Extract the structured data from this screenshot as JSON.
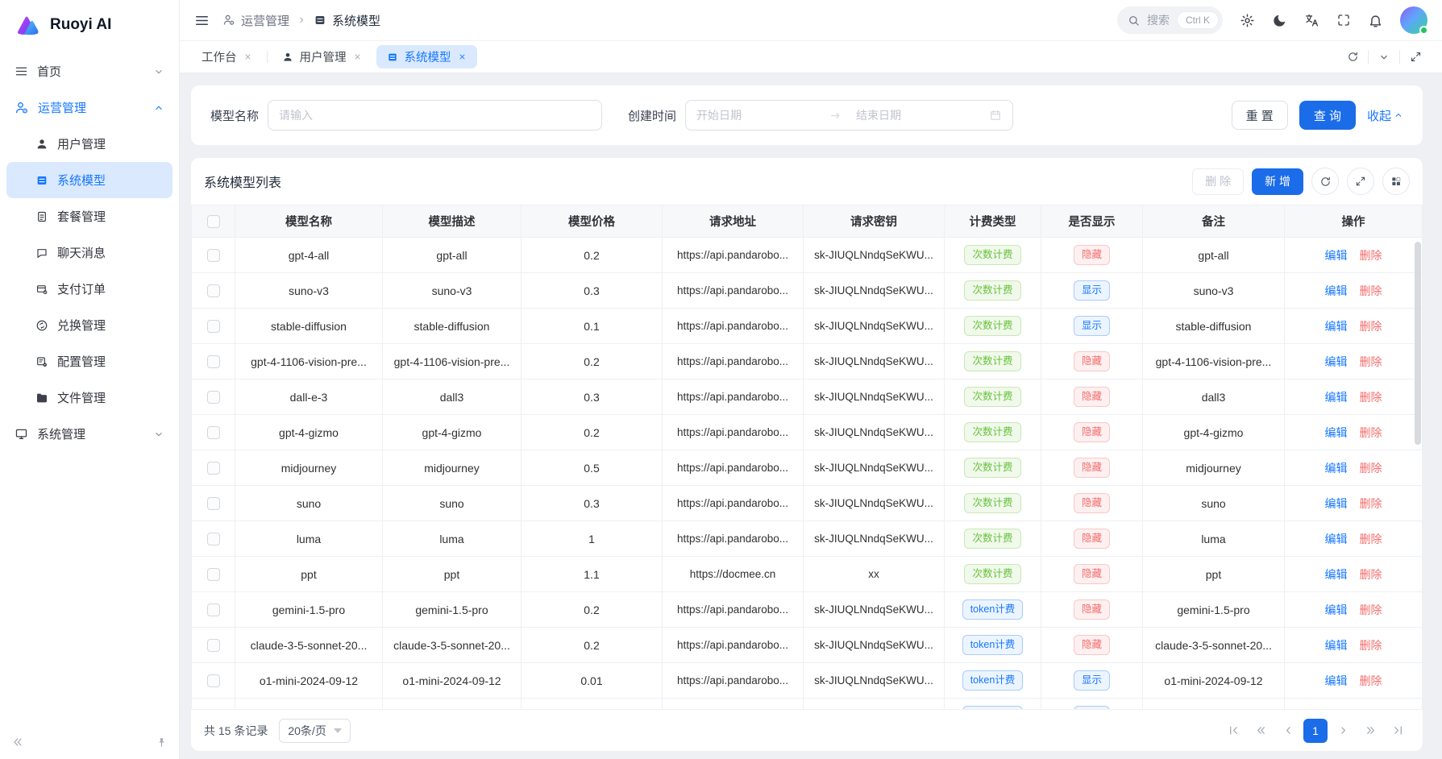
{
  "app": {
    "logo_text": "Ruoyi AI"
  },
  "sidebar": {
    "items": [
      {
        "label": "首页"
      },
      {
        "label": "运营管理",
        "children": [
          {
            "label": "用户管理"
          },
          {
            "label": "系统模型",
            "active": true
          },
          {
            "label": "套餐管理"
          },
          {
            "label": "聊天消息"
          },
          {
            "label": "支付订单"
          },
          {
            "label": "兑换管理"
          },
          {
            "label": "配置管理"
          },
          {
            "label": "文件管理"
          }
        ]
      },
      {
        "label": "系统管理"
      }
    ]
  },
  "header": {
    "breadcrumb": {
      "parent": "运营管理",
      "current": "系统模型"
    },
    "search": {
      "placeholder": "搜索",
      "shortcut": "Ctrl K"
    }
  },
  "tabs": [
    {
      "label": "工作台"
    },
    {
      "label": "用户管理"
    },
    {
      "label": "系统模型",
      "active": true
    }
  ],
  "filters": {
    "model_name_label": "模型名称",
    "model_name_placeholder": "请输入",
    "create_time_label": "创建时间",
    "start_placeholder": "开始日期",
    "end_placeholder": "结束日期",
    "reset_label": "重 置",
    "search_label": "查 询",
    "collapse_label": "收起"
  },
  "table": {
    "title": "系统模型列表",
    "delete_label": "删 除",
    "add_label": "新 增",
    "columns": [
      "模型名称",
      "模型描述",
      "模型价格",
      "请求地址",
      "请求密钥",
      "计费类型",
      "是否显示",
      "备注",
      "操作"
    ],
    "badge_labels": {
      "count": "次数计费",
      "token": "token计费",
      "hide": "隐藏",
      "show": "显示"
    },
    "action_labels": {
      "edit": "编辑",
      "delete": "删除"
    },
    "rows": [
      {
        "name": "gpt-4-all",
        "desc": "gpt-all",
        "price": "0.2",
        "url": "https://api.pandarobo...",
        "key": "sk-JIUQLNndqSeKWU...",
        "billing": "count",
        "visible": "hide",
        "remark": "gpt-all"
      },
      {
        "name": "suno-v3",
        "desc": "suno-v3",
        "price": "0.3",
        "url": "https://api.pandarobo...",
        "key": "sk-JIUQLNndqSeKWU...",
        "billing": "count",
        "visible": "show",
        "remark": "suno-v3"
      },
      {
        "name": "stable-diffusion",
        "desc": "stable-diffusion",
        "price": "0.1",
        "url": "https://api.pandarobo...",
        "key": "sk-JIUQLNndqSeKWU...",
        "billing": "count",
        "visible": "show",
        "remark": "stable-diffusion"
      },
      {
        "name": "gpt-4-1106-vision-pre...",
        "desc": "gpt-4-1106-vision-pre...",
        "price": "0.2",
        "url": "https://api.pandarobo...",
        "key": "sk-JIUQLNndqSeKWU...",
        "billing": "count",
        "visible": "hide",
        "remark": "gpt-4-1106-vision-pre..."
      },
      {
        "name": "dall-e-3",
        "desc": "dall3",
        "price": "0.3",
        "url": "https://api.pandarobo...",
        "key": "sk-JIUQLNndqSeKWU...",
        "billing": "count",
        "visible": "hide",
        "remark": "dall3"
      },
      {
        "name": "gpt-4-gizmo",
        "desc": "gpt-4-gizmo",
        "price": "0.2",
        "url": "https://api.pandarobo...",
        "key": "sk-JIUQLNndqSeKWU...",
        "billing": "count",
        "visible": "hide",
        "remark": "gpt-4-gizmo"
      },
      {
        "name": "midjourney",
        "desc": "midjourney",
        "price": "0.5",
        "url": "https://api.pandarobo...",
        "key": "sk-JIUQLNndqSeKWU...",
        "billing": "count",
        "visible": "hide",
        "remark": "midjourney"
      },
      {
        "name": "suno",
        "desc": "suno",
        "price": "0.3",
        "url": "https://api.pandarobo...",
        "key": "sk-JIUQLNndqSeKWU...",
        "billing": "count",
        "visible": "hide",
        "remark": "suno"
      },
      {
        "name": "luma",
        "desc": "luma",
        "price": "1",
        "url": "https://api.pandarobo...",
        "key": "sk-JIUQLNndqSeKWU...",
        "billing": "count",
        "visible": "hide",
        "remark": "luma"
      },
      {
        "name": "ppt",
        "desc": "ppt",
        "price": "1.1",
        "url": "https://docmee.cn",
        "key": "xx",
        "billing": "count",
        "visible": "hide",
        "remark": "ppt"
      },
      {
        "name": "gemini-1.5-pro",
        "desc": "gemini-1.5-pro",
        "price": "0.2",
        "url": "https://api.pandarobo...",
        "key": "sk-JIUQLNndqSeKWU...",
        "billing": "token",
        "visible": "hide",
        "remark": "gemini-1.5-pro"
      },
      {
        "name": "claude-3-5-sonnet-20...",
        "desc": "claude-3-5-sonnet-20...",
        "price": "0.2",
        "url": "https://api.pandarobo...",
        "key": "sk-JIUQLNndqSeKWU...",
        "billing": "token",
        "visible": "hide",
        "remark": "claude-3-5-sonnet-20..."
      },
      {
        "name": "o1-mini-2024-09-12",
        "desc": "o1-mini-2024-09-12",
        "price": "0.01",
        "url": "https://api.pandarobo...",
        "key": "sk-JIUQLNndqSeKWU...",
        "billing": "token",
        "visible": "show",
        "remark": "o1-mini-2024-09-12"
      },
      {
        "name": "",
        "desc": "",
        "price": "",
        "url": "",
        "key": "",
        "billing": "token",
        "visible": "show",
        "remark": "",
        "partial": true
      }
    ]
  },
  "footer": {
    "total_text": "共 15 条记录",
    "page_size": "20条/页",
    "current_page": "1"
  }
}
